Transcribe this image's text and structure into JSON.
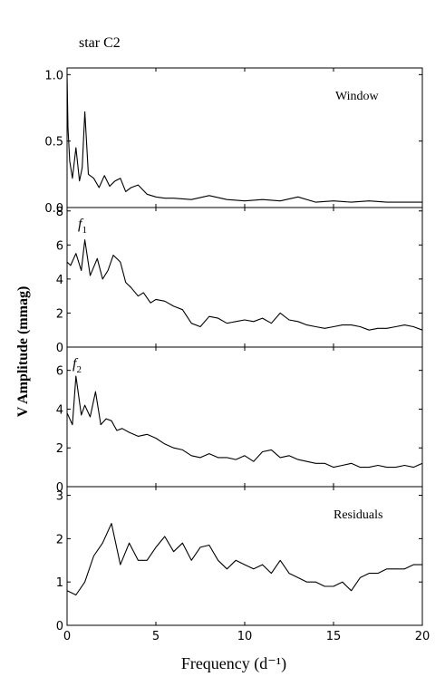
{
  "chart_data": {
    "type": "line",
    "title": "star C2",
    "xlabel": "Frequency (d⁻¹)",
    "ylabel": "V Amplitude (mmag)",
    "xlim": [
      0,
      20
    ],
    "x_ticks": [
      0,
      5,
      10,
      15,
      20
    ],
    "panels": [
      {
        "label": "Window",
        "label_style": "plain",
        "ylim": [
          0,
          1.05
        ],
        "y_ticks": [
          "0.0",
          "0.5",
          "1.0"
        ],
        "series": {
          "x": [
            0.0,
            0.05,
            0.15,
            0.3,
            0.5,
            0.7,
            0.85,
            1.0,
            1.2,
            1.5,
            1.8,
            2.1,
            2.4,
            2.7,
            3.0,
            3.3,
            3.6,
            4.0,
            4.5,
            5.0,
            5.5,
            6.0,
            7.0,
            8.0,
            9.0,
            10.0,
            11.0,
            12.0,
            13.0,
            14.0,
            15.0,
            16.0,
            17.0,
            18.0,
            19.0,
            20.0
          ],
          "y": [
            1.0,
            0.6,
            0.35,
            0.22,
            0.45,
            0.2,
            0.3,
            0.72,
            0.25,
            0.22,
            0.15,
            0.24,
            0.16,
            0.2,
            0.22,
            0.12,
            0.15,
            0.17,
            0.1,
            0.08,
            0.07,
            0.07,
            0.06,
            0.09,
            0.06,
            0.05,
            0.06,
            0.05,
            0.08,
            0.04,
            0.05,
            0.04,
            0.05,
            0.04,
            0.04,
            0.04
          ]
        }
      },
      {
        "label": "f1",
        "label_style": "italic-sub",
        "ylim": [
          0,
          8.2
        ],
        "y_ticks": [
          "0",
          "2",
          "4",
          "6",
          "8"
        ],
        "series": {
          "x": [
            0.0,
            0.2,
            0.5,
            0.8,
            1.0,
            1.3,
            1.7,
            2.0,
            2.3,
            2.6,
            3.0,
            3.3,
            3.6,
            4.0,
            4.3,
            4.7,
            5.0,
            5.5,
            6.0,
            6.5,
            7.0,
            7.5,
            8.0,
            8.5,
            9.0,
            9.5,
            10.0,
            10.5,
            11.0,
            11.5,
            12.0,
            12.5,
            13.0,
            13.5,
            14.0,
            14.5,
            15.0,
            15.5,
            16.0,
            16.5,
            17.0,
            17.5,
            18.0,
            18.5,
            19.0,
            19.5,
            20.0
          ],
          "y": [
            5.0,
            4.8,
            5.5,
            4.5,
            6.3,
            4.2,
            5.2,
            4.0,
            4.5,
            5.4,
            5.0,
            3.8,
            3.5,
            3.0,
            3.2,
            2.6,
            2.8,
            2.7,
            2.4,
            2.2,
            1.4,
            1.2,
            1.8,
            1.7,
            1.4,
            1.5,
            1.6,
            1.5,
            1.7,
            1.4,
            2.0,
            1.6,
            1.5,
            1.3,
            1.2,
            1.1,
            1.2,
            1.3,
            1.3,
            1.2,
            1.0,
            1.1,
            1.1,
            1.2,
            1.3,
            1.2,
            1.0
          ]
        }
      },
      {
        "label": "f2",
        "label_style": "italic-sub",
        "ylim": [
          0,
          7.2
        ],
        "y_ticks": [
          "0",
          "2",
          "4",
          "6"
        ],
        "series": {
          "x": [
            0.0,
            0.3,
            0.5,
            0.8,
            1.0,
            1.3,
            1.6,
            1.9,
            2.2,
            2.5,
            2.8,
            3.1,
            3.5,
            4.0,
            4.5,
            5.0,
            5.5,
            6.0,
            6.5,
            7.0,
            7.5,
            8.0,
            8.5,
            9.0,
            9.5,
            10.0,
            10.5,
            11.0,
            11.5,
            12.0,
            12.5,
            13.0,
            13.5,
            14.0,
            14.5,
            15.0,
            15.5,
            16.0,
            16.5,
            17.0,
            17.5,
            18.0,
            18.5,
            19.0,
            19.5,
            20.0
          ],
          "y": [
            3.8,
            3.2,
            5.7,
            3.7,
            4.2,
            3.6,
            4.9,
            3.2,
            3.5,
            3.4,
            2.9,
            3.0,
            2.8,
            2.6,
            2.7,
            2.5,
            2.2,
            2.0,
            1.9,
            1.6,
            1.5,
            1.7,
            1.5,
            1.5,
            1.4,
            1.6,
            1.3,
            1.8,
            1.9,
            1.5,
            1.6,
            1.4,
            1.3,
            1.2,
            1.2,
            1.0,
            1.1,
            1.2,
            1.0,
            1.0,
            1.1,
            1.0,
            1.0,
            1.1,
            1.0,
            1.2
          ]
        }
      },
      {
        "label": "Residuals",
        "label_style": "plain",
        "ylim": [
          0,
          3.2
        ],
        "y_ticks": [
          "0",
          "1",
          "2",
          "3"
        ],
        "series": {
          "x": [
            0.0,
            0.5,
            1.0,
            1.5,
            2.0,
            2.5,
            3.0,
            3.5,
            4.0,
            4.5,
            5.0,
            5.5,
            6.0,
            6.5,
            7.0,
            7.5,
            8.0,
            8.5,
            9.0,
            9.5,
            10.0,
            10.5,
            11.0,
            11.5,
            12.0,
            12.5,
            13.0,
            13.5,
            14.0,
            14.5,
            15.0,
            15.5,
            16.0,
            16.5,
            17.0,
            17.5,
            18.0,
            18.5,
            19.0,
            19.5,
            20.0
          ],
          "y": [
            0.8,
            0.7,
            1.0,
            1.6,
            1.9,
            2.35,
            1.4,
            1.9,
            1.5,
            1.5,
            1.8,
            2.05,
            1.7,
            1.9,
            1.5,
            1.8,
            1.85,
            1.5,
            1.3,
            1.5,
            1.4,
            1.3,
            1.4,
            1.2,
            1.5,
            1.2,
            1.1,
            1.0,
            1.0,
            0.9,
            0.9,
            1.0,
            0.8,
            1.1,
            1.2,
            1.2,
            1.3,
            1.3,
            1.3,
            1.4,
            1.4
          ]
        }
      }
    ]
  }
}
